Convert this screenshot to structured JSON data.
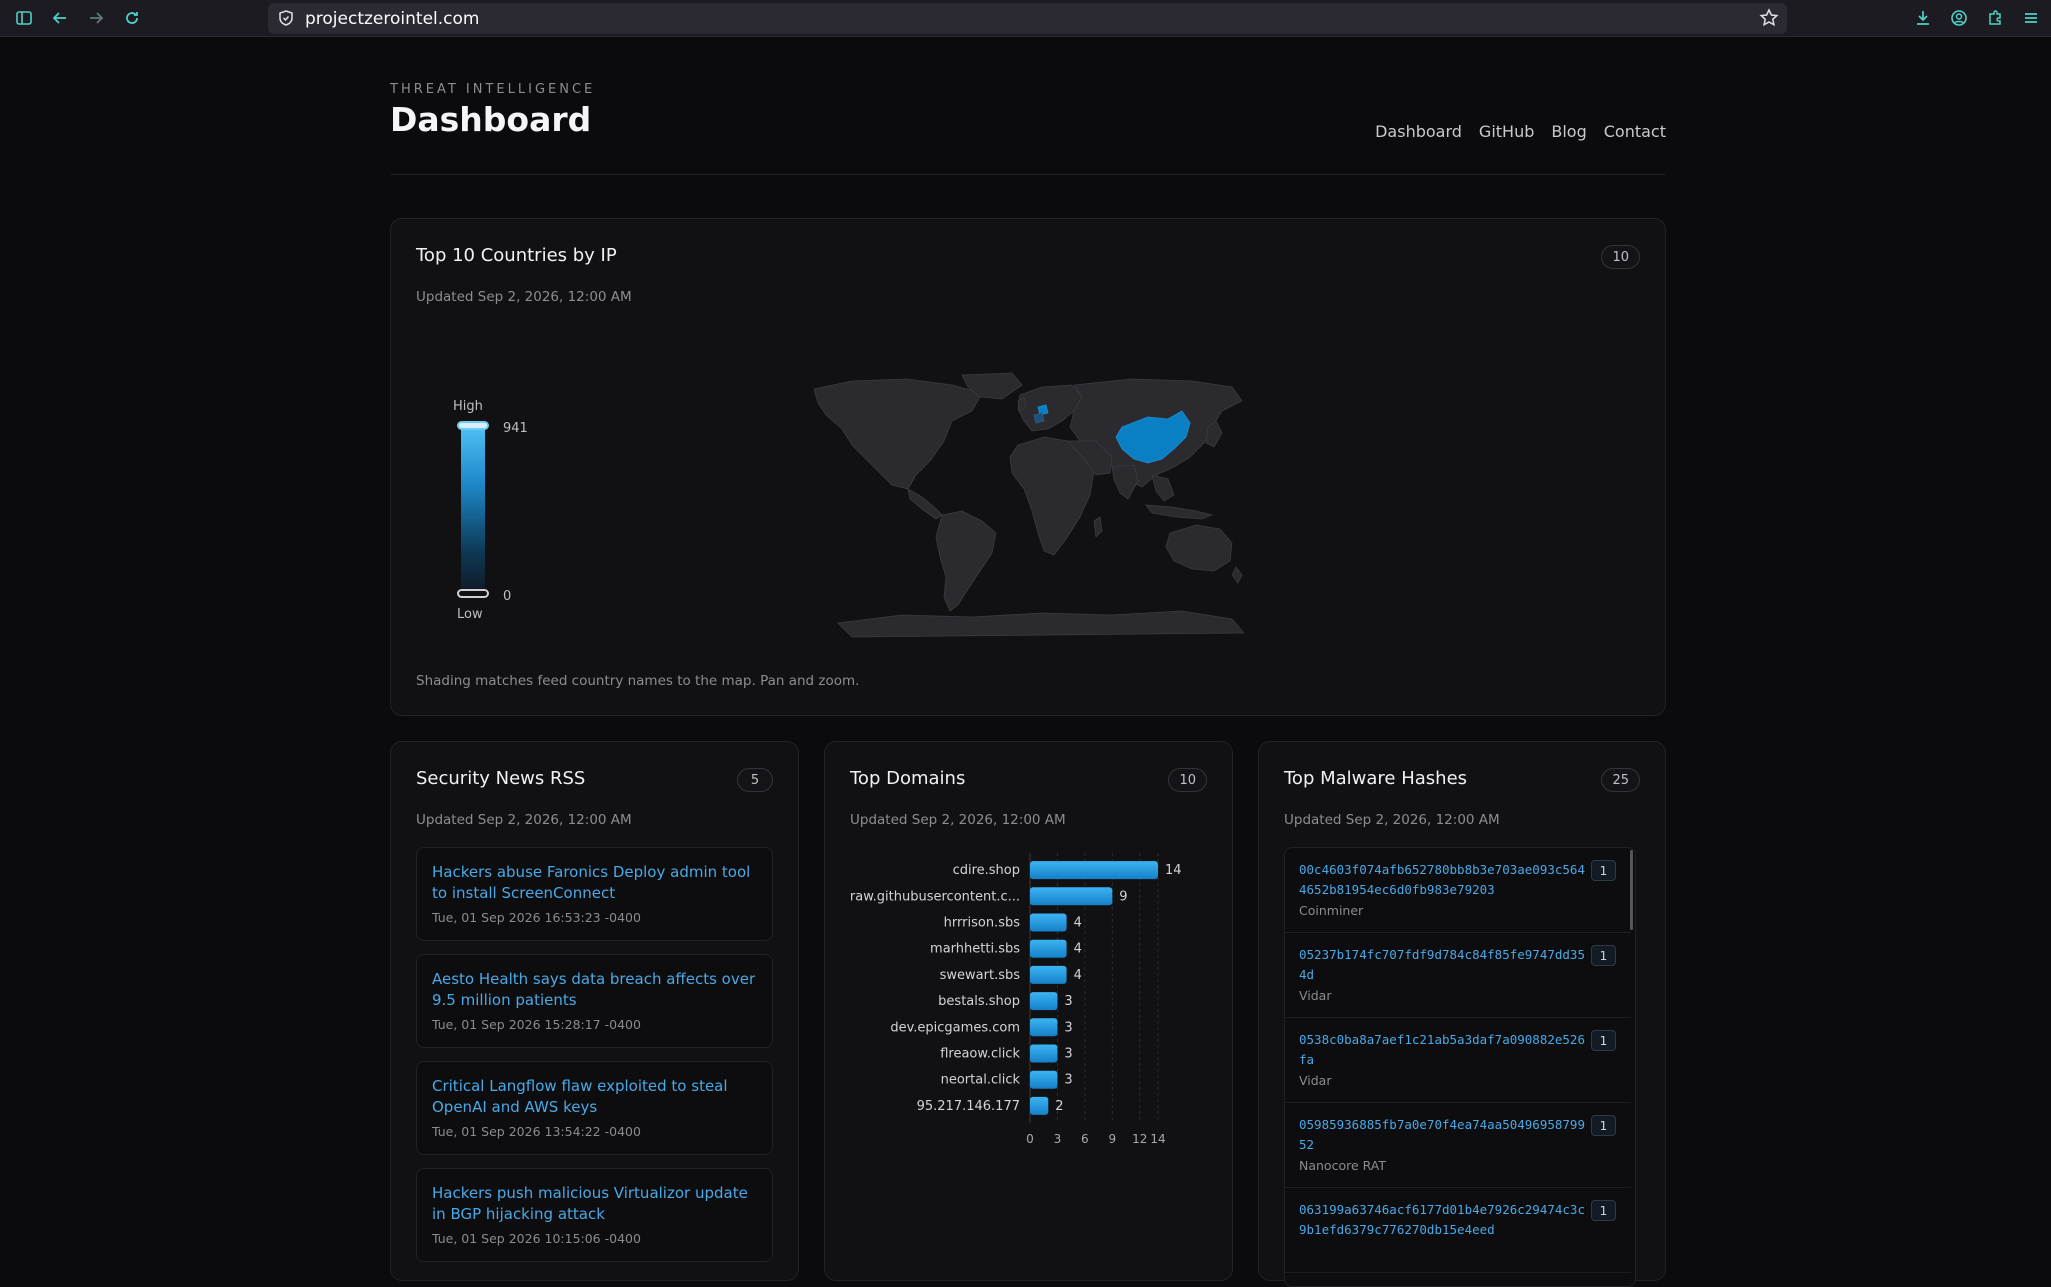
{
  "browser": {
    "url": "projectzerointel.com"
  },
  "header": {
    "eyebrow": "THREAT INTELLIGENCE",
    "title": "Dashboard",
    "nav": [
      "Dashboard",
      "GitHub",
      "Blog",
      "Contact"
    ]
  },
  "map_card": {
    "title": "Top 10 Countries by IP",
    "count": "10",
    "updated": "Updated Sep 2, 2026, 12:00 AM",
    "legend": {
      "high_label": "High",
      "low_label": "Low",
      "max": "941",
      "min": "0"
    },
    "note": "Shading matches feed country names to the map. Pan and zoom.",
    "colors": {
      "highlight": "#0b7fc4",
      "land": "#2b2b2f",
      "border": "#3a3a40"
    }
  },
  "news_card": {
    "title": "Security News RSS",
    "count": "5",
    "updated": "Updated Sep 2, 2026, 12:00 AM",
    "items": [
      {
        "headline": "Hackers abuse Faronics Deploy admin tool to install ScreenConnect",
        "date": "Tue, 01 Sep 2026 16:53:23 -0400"
      },
      {
        "headline": "Aesto Health says data breach affects over 9.5 million patients",
        "date": "Tue, 01 Sep 2026 15:28:17 -0400"
      },
      {
        "headline": "Critical Langflow flaw exploited to steal OpenAI and AWS keys",
        "date": "Tue, 01 Sep 2026 13:54:22 -0400"
      },
      {
        "headline": "Hackers push malicious Virtualizor update in BGP hijacking attack",
        "date": "Tue, 01 Sep 2026 10:15:06 -0400"
      }
    ]
  },
  "domains_card": {
    "title": "Top Domains",
    "count": "10",
    "updated": "Updated Sep 2, 2026, 12:00 AM"
  },
  "chart_data": {
    "type": "bar",
    "orientation": "horizontal",
    "categories": [
      "cdire.shop",
      "raw.githubusercontent.c...",
      "hrrrison.sbs",
      "marhhetti.sbs",
      "swewart.sbs",
      "bestals.shop",
      "dev.epicgames.com",
      "flreaow.click",
      "neortal.click",
      "95.217.146.177"
    ],
    "values": [
      14,
      9,
      4,
      4,
      4,
      3,
      3,
      3,
      3,
      2
    ],
    "x_ticks": [
      0,
      3,
      6,
      9,
      12,
      14
    ],
    "xlim": [
      0,
      14
    ],
    "grid": true,
    "bar_color": "#1e9ee6"
  },
  "hashes_card": {
    "title": "Top Malware Hashes",
    "count": "25",
    "updated": "Updated Sep 2, 2026, 12:00 AM",
    "items": [
      {
        "hash": "00c4603f074afb652780bb8b3e703ae093c5644652b81954ec6d0fb983e79203",
        "family": "Coinminer",
        "count": "1"
      },
      {
        "hash": "05237b174fc707fdf9d784c84f85fe9747dd354d",
        "family": "Vidar",
        "count": "1"
      },
      {
        "hash": "0538c0ba8a7aef1c21ab5a3daf7a090882e526fa",
        "family": "Vidar",
        "count": "1"
      },
      {
        "hash": "05985936885fb7a0e70f4ea74aa5049695879952",
        "family": "Nanocore RAT",
        "count": "1"
      },
      {
        "hash": "063199a63746acf6177d01b4e7926c29474c3c9b1efd6379c776270db15e4eed",
        "family": "",
        "count": "1"
      }
    ]
  }
}
